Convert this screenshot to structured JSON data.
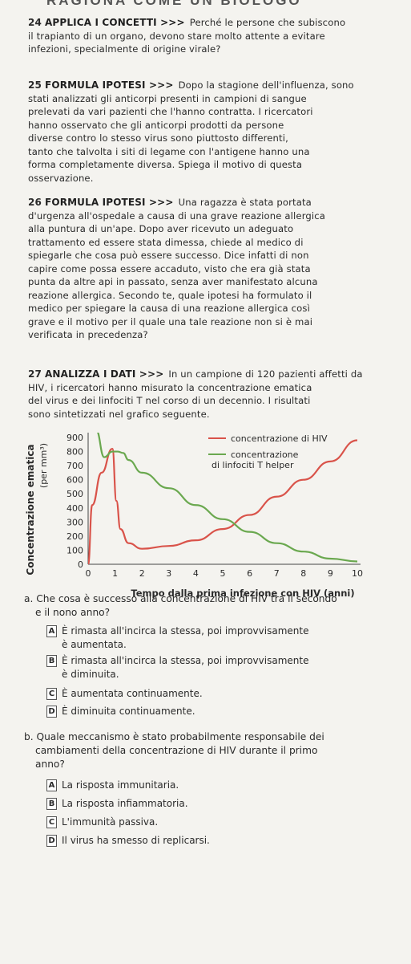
{
  "header": "RAGIONA COME UN BIOLOGO",
  "q24": {
    "num": "24",
    "tag": "APPLICA I CONCETTI >>>",
    "lines": [
      "Perché le persone che subiscono",
      "il trapianto di un organo, devono stare molto attente a evitare",
      "infezioni, specialmente di origine virale?"
    ]
  },
  "q25": {
    "num": "25",
    "tag": "FORMULA IPOTESI >>>",
    "lines": [
      "Dopo la stagione dell'influenza, sono",
      "stati analizzati gli anticorpi presenti in campioni di sangue",
      "prelevati da vari pazienti che l'hanno contratta. I ricercatori",
      "hanno osservato che gli anticorpi prodotti da persone",
      "diverse contro lo stesso virus sono piuttosto differenti,",
      "tanto che talvolta i siti di legame con l'antigene hanno una",
      "forma completamente diversa. Spiega il motivo di questa",
      "osservazione."
    ]
  },
  "q26": {
    "num": "26",
    "tag": "FORMULA IPOTESI >>>",
    "lines": [
      "Una ragazza è stata portata",
      "d'urgenza all'ospedale a causa di una grave reazione allergica",
      "alla puntura di un'ape. Dopo aver ricevuto un adeguato",
      "trattamento ed essere stata dimessa, chiede al medico di",
      "spiegarle che cosa può essere successo. Dice infatti di non",
      "capire come possa essere accaduto, visto che era già stata",
      "punta da altre api in passato, senza aver manifestato alcuna",
      "reazione allergica. Secondo te, quale ipotesi ha formulato il",
      "medico per spiegare la causa di una reazione allergica così",
      "grave e il motivo per il quale una tale reazione non si è mai",
      "verificata in precedenza?"
    ]
  },
  "q27": {
    "num": "27",
    "tag": "ANALIZZA I DATI >>>",
    "lines": [
      "In un campione di 120 pazienti affetti da",
      "HIV, i ricercatori hanno misurato la concentrazione ematica",
      "del virus e dei linfociti T nel corso di un decennio. I risultati",
      "sono sintetizzati nel grafico seguente."
    ]
  },
  "chart_data": {
    "type": "line",
    "ylabel": "Concentrazione ematica",
    "ylabel_unit": "(per mm³)",
    "xlabel": "Tempo dalla prima infezione con HIV (anni)",
    "ylim": [
      0,
      900
    ],
    "xlim": [
      0,
      10
    ],
    "yticks": [
      "0",
      "100",
      "200",
      "300",
      "400",
      "500",
      "600",
      "700",
      "800",
      "900"
    ],
    "xticks": [
      "0",
      "1",
      "2",
      "3",
      "4",
      "5",
      "6",
      "7",
      "8",
      "9",
      "10"
    ],
    "legend_position": "top-right",
    "series": [
      {
        "name": "concentrazione di HIV",
        "color": "#d9534a",
        "x": [
          0,
          0.15,
          0.5,
          0.9,
          1.05,
          1.2,
          1.5,
          2,
          3,
          4,
          5,
          6,
          7,
          8,
          9,
          10
        ],
        "y": [
          0,
          420,
          650,
          820,
          450,
          250,
          150,
          110,
          130,
          170,
          250,
          350,
          480,
          600,
          730,
          880
        ]
      },
      {
        "name": "concentrazione di linfociti T helper",
        "color": "#6aa84f",
        "x": [
          0,
          0.3,
          0.6,
          0.9,
          1.1,
          1.3,
          1.5,
          2,
          3,
          4,
          5,
          6,
          7,
          8,
          9,
          10
        ],
        "y": [
          1000,
          950,
          760,
          800,
          800,
          790,
          740,
          650,
          540,
          420,
          320,
          230,
          150,
          90,
          40,
          20
        ]
      }
    ]
  },
  "qa": {
    "text": "a. Che cosa è successo alla concentrazione di HIV tra il secondo",
    "text2": "e il nono anno?"
  },
  "opts_a": [
    {
      "letter": "A",
      "lines": [
        "È rimasta all'incirca la stessa, poi improvvisamente",
        "è aumentata."
      ]
    },
    {
      "letter": "B",
      "lines": [
        "È rimasta all'incirca la stessa, poi improvvisamente",
        "è diminuita."
      ]
    },
    {
      "letter": "C",
      "lines": [
        "È aumentata continuamente."
      ]
    },
    {
      "letter": "D",
      "lines": [
        "È diminuita continuamente."
      ]
    }
  ],
  "qb": {
    "text": "b. Quale meccanismo è stato probabilmente responsabile dei",
    "text2": "cambiamenti della concentrazione di HIV durante il primo",
    "text3": "anno?"
  },
  "opts_b": [
    {
      "letter": "A",
      "lines": [
        "La risposta immunitaria."
      ]
    },
    {
      "letter": "B",
      "lines": [
        "La risposta infiammatoria."
      ]
    },
    {
      "letter": "C",
      "lines": [
        "L'immunità passiva."
      ]
    },
    {
      "letter": "D",
      "lines": [
        "Il virus ha smesso di replicarsi."
      ]
    }
  ]
}
